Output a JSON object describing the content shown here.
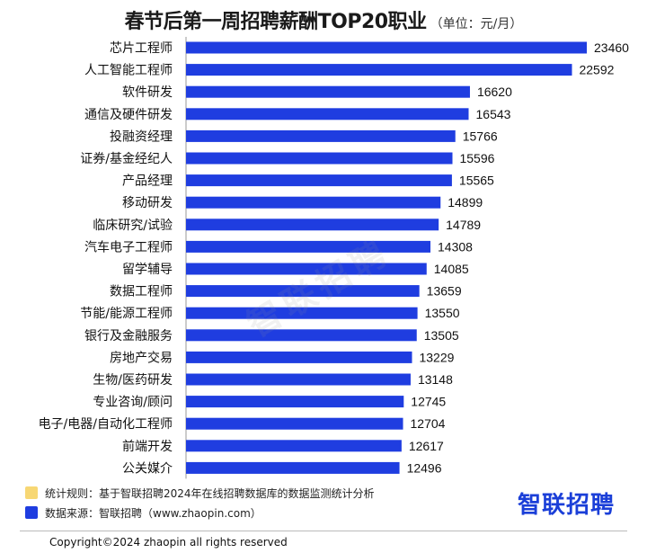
{
  "header": {
    "title": "春节后第一周招聘薪酬TOP20职业",
    "unit": "（单位：元/月）"
  },
  "chart_data": {
    "type": "bar",
    "orientation": "horizontal",
    "categories": [
      "芯片工程师",
      "人工智能工程师",
      "软件研发",
      "通信及硬件研发",
      "投融资经理",
      "证券/基金经纪人",
      "产品经理",
      "移动研发",
      "临床研究/试验",
      "汽车电子工程师",
      "留学辅导",
      "数据工程师",
      "节能/能源工程师",
      "银行及金融服务",
      "房地产交易",
      "生物/医药研发",
      "专业咨询/顾问",
      "电子/电器/自动化工程师",
      "前端开发",
      "公关媒介"
    ],
    "values": [
      23460,
      22592,
      16620,
      16543,
      15766,
      15596,
      15565,
      14899,
      14789,
      14308,
      14085,
      13659,
      13550,
      13505,
      13229,
      13148,
      12745,
      12704,
      12617,
      12496
    ],
    "xlim": [
      0,
      23460
    ],
    "bar_color": "#1f3de0",
    "grid": false,
    "data_labels": true
  },
  "watermark": "智联招聘",
  "legend": [
    {
      "text": "统计规则：基于智联招聘2024年在线招聘数据库的数据监测统计分析",
      "color": "#f7d774"
    },
    {
      "text": "数据来源：智联招聘（www.zhaopin.com）",
      "color": "#1f3de0"
    }
  ],
  "brand": {
    "name": "智联招聘",
    "color": "#1b3fd8"
  },
  "footer": {
    "copyright": "Copyright©2024 zhaopin all rights reserved"
  }
}
